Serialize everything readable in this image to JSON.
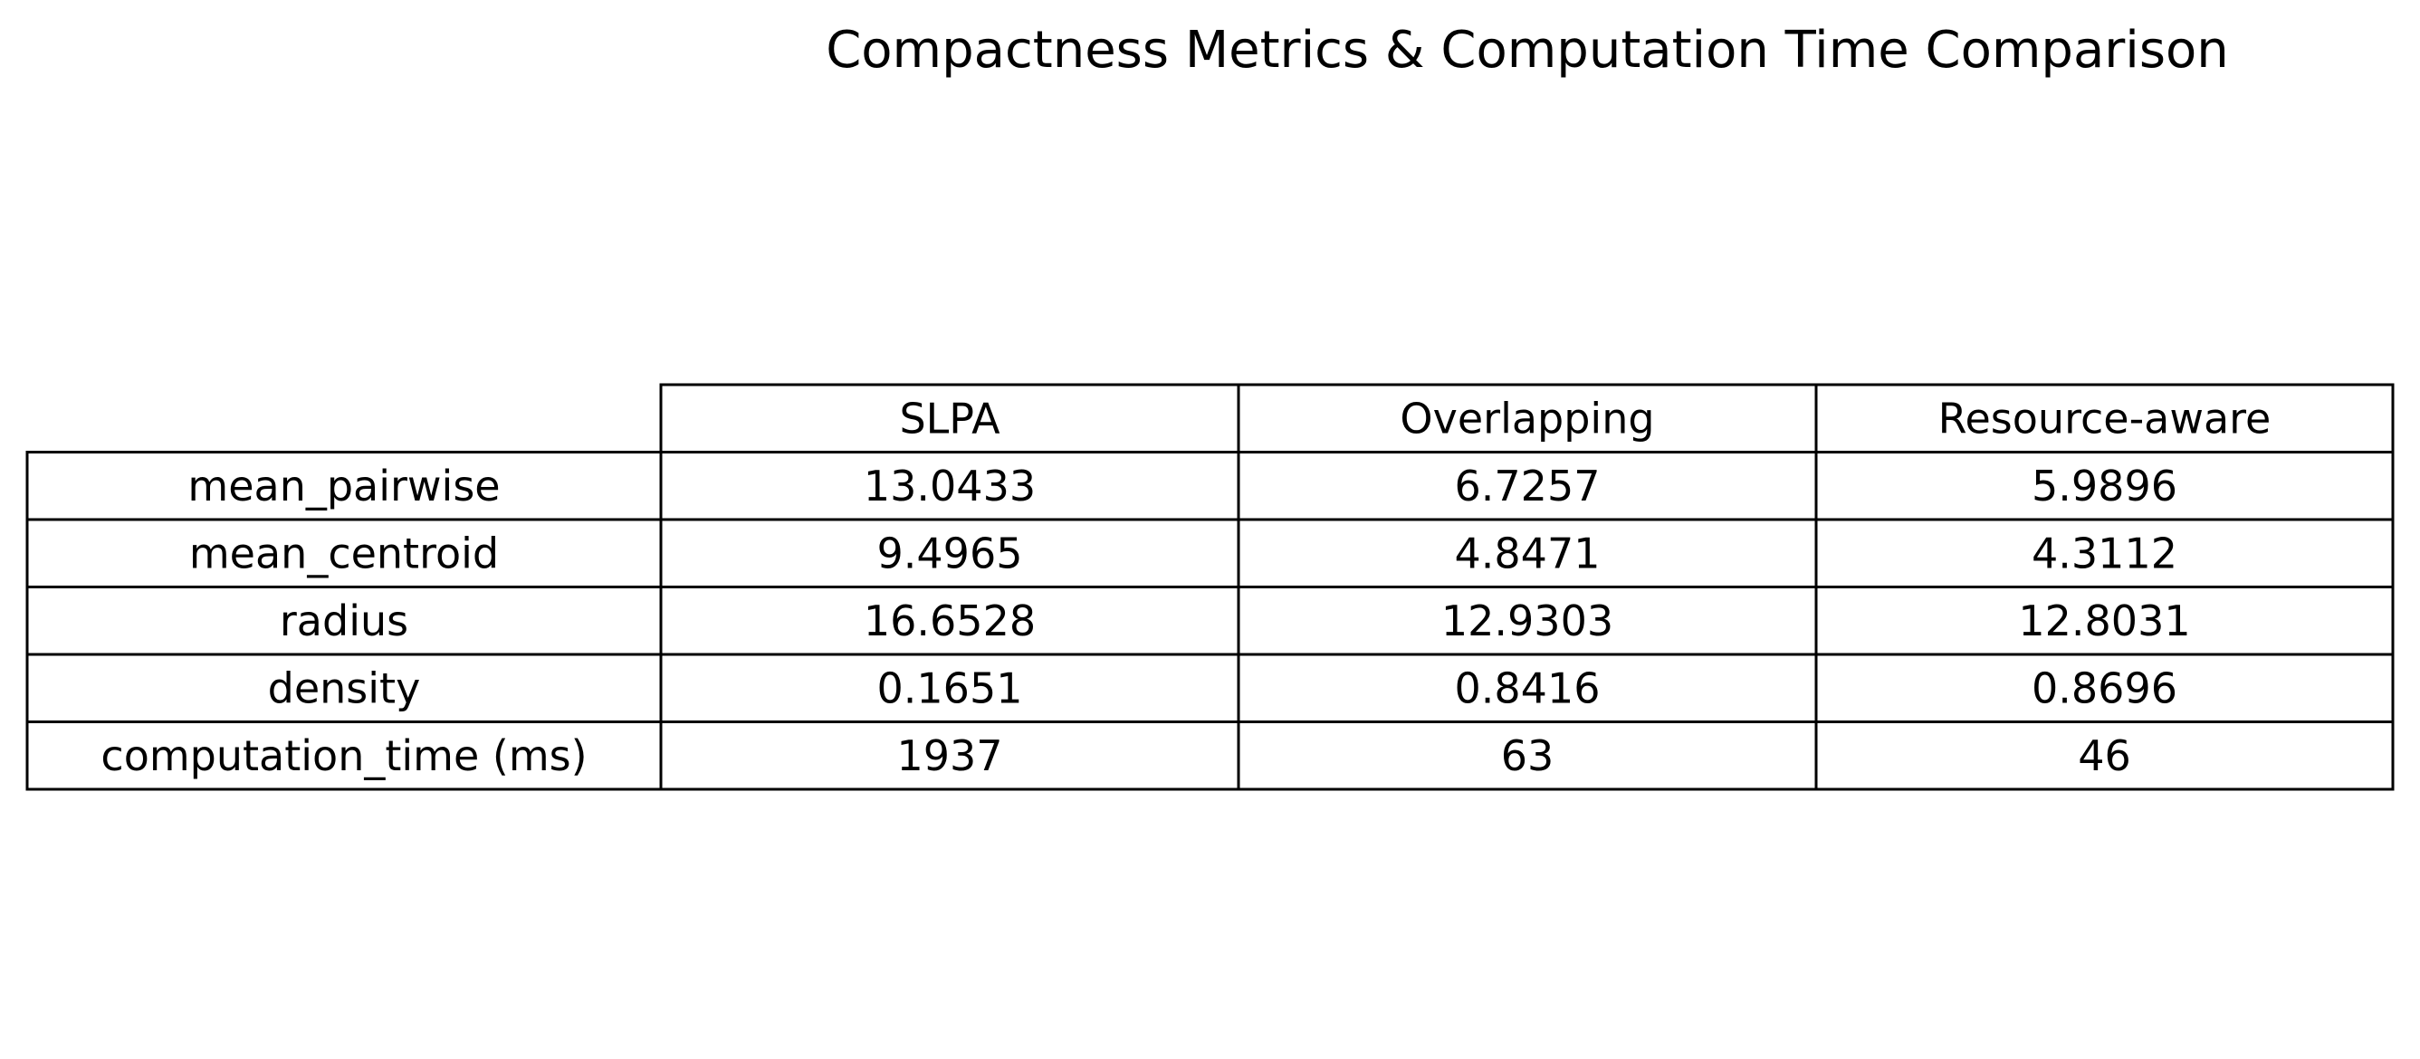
{
  "chart_data": {
    "type": "table",
    "title": "Compactness Metrics & Computation Time Comparison",
    "columns": [
      "SLPA",
      "Overlapping",
      "Resource-aware"
    ],
    "rows": [
      {
        "label": "mean_pairwise",
        "values": [
          "13.0433",
          "6.7257",
          "5.9896"
        ]
      },
      {
        "label": "mean_centroid",
        "values": [
          "9.4965",
          "4.8471",
          "4.3112"
        ]
      },
      {
        "label": "radius",
        "values": [
          "16.6528",
          "12.9303",
          "12.8031"
        ]
      },
      {
        "label": "density",
        "values": [
          "0.1651",
          "0.8416",
          "0.8696"
        ]
      },
      {
        "label": "computation_time (ms)",
        "values": [
          "1937",
          "63",
          "46"
        ]
      }
    ]
  }
}
